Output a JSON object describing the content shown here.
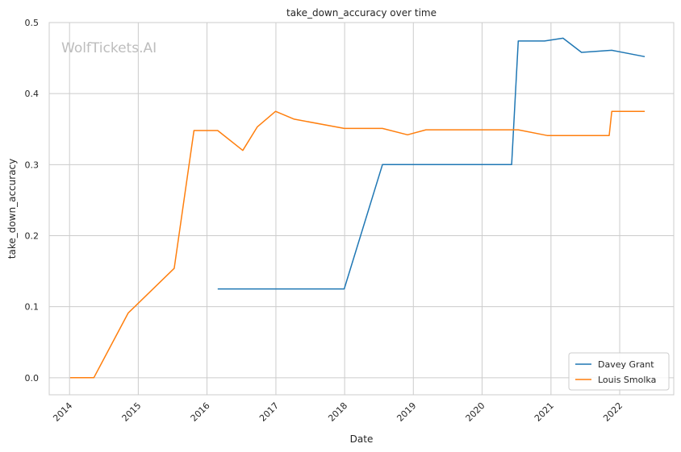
{
  "chart_data": {
    "type": "line",
    "title": "take_down_accuracy over time",
    "xlabel": "Date",
    "ylabel": "take_down_accuracy",
    "watermark": "WolfTickets.AI",
    "x_ticks": [
      "2014",
      "2015",
      "2016",
      "2017",
      "2018",
      "2019",
      "2020",
      "2021",
      "2022"
    ],
    "y_ticks": [
      "0.0",
      "0.1",
      "0.2",
      "0.3",
      "0.4",
      "0.5"
    ],
    "xlim": [
      "2013-09-15",
      "2022-10-15"
    ],
    "ylim": [
      -0.024,
      0.5
    ],
    "grid": true,
    "legend_position": "bottom-right",
    "series": [
      {
        "name": "Davey Grant",
        "color": "#1f77b4",
        "points": [
          [
            "2016-02-27",
            0.125
          ],
          [
            "2017-12-30",
            0.125
          ],
          [
            "2018-07-21",
            0.3
          ],
          [
            "2020-06-06",
            0.3
          ],
          [
            "2020-07-11",
            0.474
          ],
          [
            "2020-11-28",
            0.474
          ],
          [
            "2021-03-06",
            0.478
          ],
          [
            "2021-06-12",
            0.458
          ],
          [
            "2021-11-20",
            0.461
          ],
          [
            "2022-05-14",
            0.452
          ]
        ]
      },
      {
        "name": "Louis Smolka",
        "color": "#ff7f0e",
        "points": [
          [
            "2014-01-04",
            0.0
          ],
          [
            "2014-05-10",
            0.0
          ],
          [
            "2014-11-08",
            0.091
          ],
          [
            "2015-07-11",
            0.154
          ],
          [
            "2015-10-24",
            0.348
          ],
          [
            "2016-02-27",
            0.348
          ],
          [
            "2016-07-09",
            0.32
          ],
          [
            "2016-09-24",
            0.353
          ],
          [
            "2016-12-30",
            0.375
          ],
          [
            "2017-04-08",
            0.364
          ],
          [
            "2017-12-30",
            0.351
          ],
          [
            "2018-07-21",
            0.351
          ],
          [
            "2018-12-01",
            0.342
          ],
          [
            "2019-03-09",
            0.349
          ],
          [
            "2020-07-11",
            0.349
          ],
          [
            "2020-12-12",
            0.341
          ],
          [
            "2021-11-06",
            0.341
          ],
          [
            "2021-11-20",
            0.375
          ],
          [
            "2022-05-14",
            0.375
          ]
        ]
      }
    ]
  }
}
